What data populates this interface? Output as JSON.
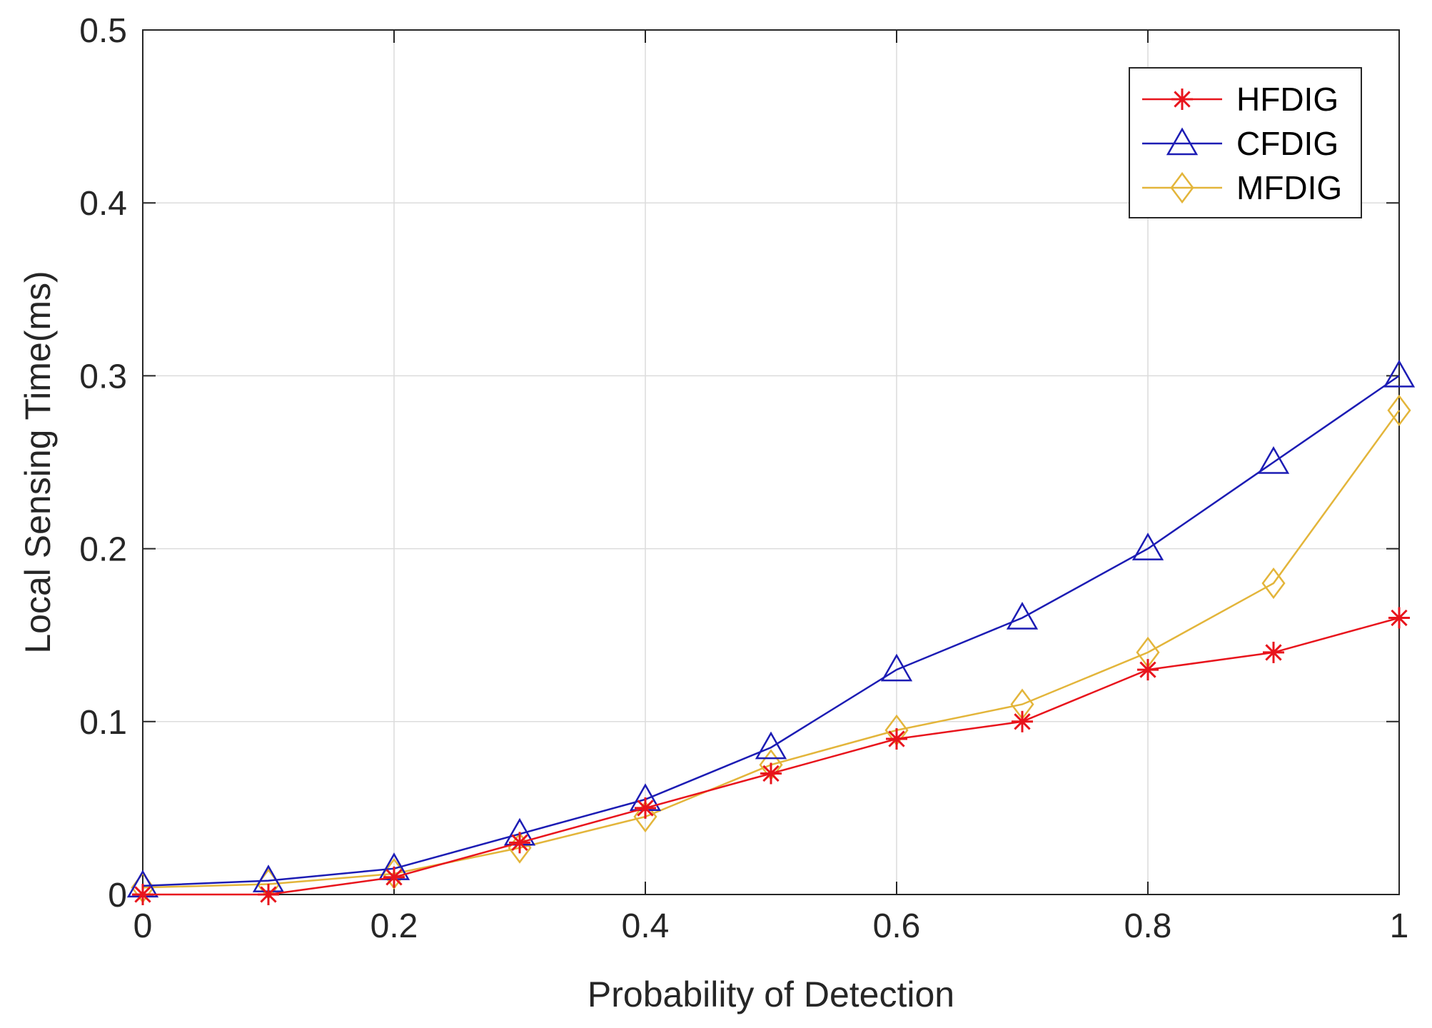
{
  "chart_data": {
    "type": "line",
    "title": "",
    "xlabel": "Probability of Detection",
    "ylabel": "Local Sensing Time(ms)",
    "xlim": [
      0,
      1
    ],
    "ylim": [
      0,
      0.5
    ],
    "grid": true,
    "legend_position": "top-right",
    "x": [
      0,
      0.1,
      0.2,
      0.3,
      0.4,
      0.5,
      0.6,
      0.7,
      0.8,
      0.9,
      1.0
    ],
    "xticks": [
      "0",
      "0.2",
      "0.4",
      "0.6",
      "0.8",
      "1"
    ],
    "yticks": [
      "0",
      "0.1",
      "0.2",
      "0.3",
      "0.4",
      "0.5"
    ],
    "series": [
      {
        "name": "HFDIG",
        "color": "#e8141c",
        "marker": "asterisk",
        "values": [
          0.0,
          0.0,
          0.01,
          0.03,
          0.05,
          0.07,
          0.09,
          0.1,
          0.13,
          0.14,
          0.16
        ]
      },
      {
        "name": "CFDIG",
        "color": "#1c1cb4",
        "marker": "triangle",
        "values": [
          0.005,
          0.008,
          0.015,
          0.035,
          0.055,
          0.085,
          0.13,
          0.16,
          0.2,
          0.25,
          0.3
        ]
      },
      {
        "name": "MFDIG",
        "color": "#e3b53a",
        "marker": "diamond",
        "values": [
          0.004,
          0.006,
          0.012,
          0.027,
          0.045,
          0.075,
          0.095,
          0.11,
          0.14,
          0.18,
          0.28
        ]
      }
    ]
  }
}
